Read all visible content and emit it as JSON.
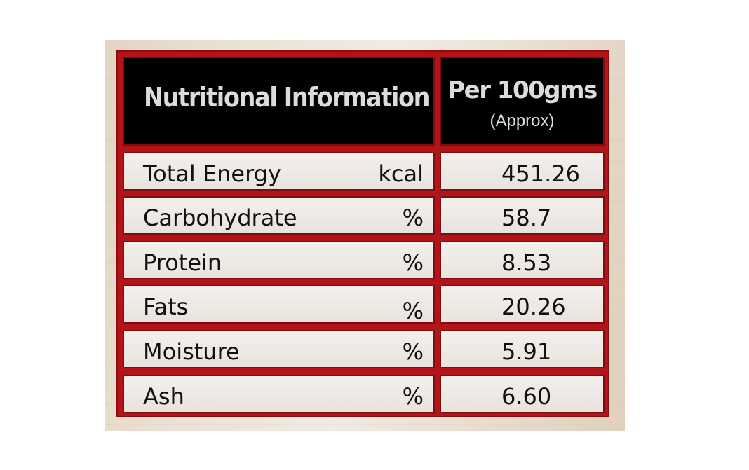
{
  "table": {
    "header": {
      "title": "Nutritional Information",
      "per": "Per 100gms",
      "approx": "(Approx)"
    },
    "rows": [
      {
        "label": "Total Energy",
        "unit": "kcal",
        "value": "451.26"
      },
      {
        "label": "Carbohydrate",
        "unit": "%",
        "value": "58.7"
      },
      {
        "label": "Protein",
        "unit": "%",
        "value": "8.53"
      },
      {
        "label": "Fats",
        "unit": "%",
        "value": "20.26"
      },
      {
        "label": "Moisture",
        "unit": "%",
        "value": "5.91"
      },
      {
        "label": "Ash",
        "unit": "%",
        "value": "6.60"
      }
    ]
  },
  "colors": {
    "border_red": "#b3141a",
    "header_black": "#000000",
    "header_text": "#dcdcdc",
    "body_text": "#111111"
  }
}
